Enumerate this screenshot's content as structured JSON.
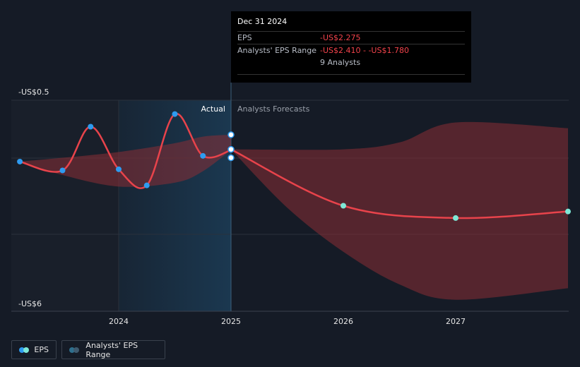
{
  "chart_data": {
    "type": "line",
    "y_top_label": "-US$0.5",
    "y_bottom_label": "-US$6",
    "ylim": [
      -6,
      -0.5
    ],
    "xlim": [
      2023.25,
      2028.0
    ],
    "x_ticks": [
      {
        "value": 2024,
        "label": "2024"
      },
      {
        "value": 2025,
        "label": "2025"
      },
      {
        "value": 2026,
        "label": "2026"
      },
      {
        "value": 2027,
        "label": "2027"
      }
    ],
    "divider_x": 2025,
    "actual_label": "Actual",
    "forecast_label": "Analysts Forecasts",
    "actual_series": {
      "name": "EPS",
      "points": [
        {
          "x": 2023.12,
          "y": -2.1
        },
        {
          "x": 2023.5,
          "y": -2.33
        },
        {
          "x": 2023.75,
          "y": -1.19
        },
        {
          "x": 2024.0,
          "y": -2.3
        },
        {
          "x": 2024.25,
          "y": -2.72
        },
        {
          "x": 2024.5,
          "y": -0.86
        },
        {
          "x": 2024.75,
          "y": -1.95
        },
        {
          "x": 2025.0,
          "y": -1.8
        }
      ]
    },
    "actual_range": {
      "upper": [
        [
          2023.12,
          -2.1
        ],
        [
          2023.5,
          -2.0
        ],
        [
          2024.0,
          -1.85
        ],
        [
          2024.5,
          -1.62
        ],
        [
          2024.75,
          -1.45
        ],
        [
          2025.0,
          -1.4
        ]
      ],
      "lower": [
        [
          2023.12,
          -2.1
        ],
        [
          2023.5,
          -2.45
        ],
        [
          2024.0,
          -2.75
        ],
        [
          2024.5,
          -2.65
        ],
        [
          2024.75,
          -2.35
        ],
        [
          2025.0,
          -1.8
        ]
      ]
    },
    "forecast_series": {
      "name": "EPS",
      "points": [
        {
          "x": 2025.0,
          "y": -1.78
        },
        {
          "x": 2026.0,
          "y": -3.25
        },
        {
          "x": 2027.0,
          "y": -3.57
        },
        {
          "x": 2028.0,
          "y": -3.4
        }
      ]
    },
    "forecast_range": {
      "upper": [
        [
          2025.0,
          -1.78
        ],
        [
          2026.0,
          -1.78
        ],
        [
          2026.5,
          -1.6
        ],
        [
          2027.0,
          -1.08
        ],
        [
          2028.0,
          -1.23
        ]
      ],
      "lower": [
        [
          2025.0,
          -1.78
        ],
        [
          2025.5,
          -3.3
        ],
        [
          2026.0,
          -4.45
        ],
        [
          2026.5,
          -5.3
        ],
        [
          2027.0,
          -5.7
        ],
        [
          2028.0,
          -5.4
        ]
      ]
    },
    "tooltip_markers": [
      -1.4,
      -1.78,
      -2.0
    ]
  },
  "tooltip": {
    "date": "Dec 31 2024",
    "eps_label": "EPS",
    "eps_value": "-US$2.275",
    "range_label": "Analysts' EPS Range",
    "range_value": "-US$2.410 - -US$1.780",
    "analysts": "9 Analysts"
  },
  "legend": {
    "eps_label": "EPS",
    "range_label": "Analysts' EPS Range"
  },
  "colors": {
    "line": "#e8434b",
    "actual_dot": "#2e9bf0",
    "forecast_dot": "#7ee8d6",
    "range_fill": "#8a2d35",
    "highlight": "#1b3850"
  }
}
